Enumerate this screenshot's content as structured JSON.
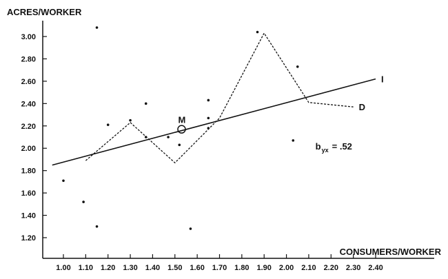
{
  "chart_data": {
    "type": "scatter",
    "ylabel": "ACRES/WORKER",
    "xlabel": "CONSUMERS/WORKER",
    "xlim": [
      0.93,
      2.45
    ],
    "ylim": [
      1.1,
      3.15
    ],
    "x_ticks": [
      "1.00",
      "1.10",
      "1.20",
      "1.30",
      "1.40",
      "1.50",
      "1.60",
      "1.70",
      "1.80",
      "1.90",
      "2.00",
      "2.10",
      "2.20",
      "2.30",
      "2.40"
    ],
    "y_ticks": [
      "1.20",
      "1.40",
      "1.60",
      "1.80",
      "2.00",
      "2.20",
      "2.40",
      "2.60",
      "2.80",
      "3.00"
    ],
    "grid": false,
    "legend": "none",
    "series": [
      {
        "kind": "points",
        "x": [
          1.0,
          1.09,
          1.15,
          1.15,
          1.2,
          1.3,
          1.37,
          1.37,
          1.47,
          1.52,
          1.57,
          1.65,
          1.65,
          1.65,
          1.87,
          2.03,
          2.05
        ],
        "y": [
          1.71,
          1.52,
          1.3,
          3.08,
          2.21,
          2.25,
          2.4,
          2.1,
          2.1,
          2.03,
          1.28,
          2.43,
          2.27,
          2.18,
          3.04,
          2.07,
          2.73
        ]
      },
      {
        "kind": "regression-line",
        "label": "I",
        "x": [
          0.95,
          2.4
        ],
        "y": [
          1.85,
          2.62
        ]
      },
      {
        "kind": "dashed-line",
        "label": "D",
        "x": [
          1.1,
          1.3,
          1.5,
          1.7,
          1.9,
          2.1,
          2.3
        ],
        "y": [
          1.89,
          2.23,
          1.87,
          2.27,
          3.03,
          2.41,
          2.37
        ]
      }
    ],
    "mean_point": {
      "label": "M",
      "x": 1.53,
      "y": 2.17
    },
    "annotations": {
      "coefficient_main": "b",
      "coefficient_sub": "yx",
      "coefficient_value": "= .52",
      "coefficient_at": {
        "x": 2.13,
        "y": 1.99
      }
    }
  },
  "colors": {
    "ink": "#111111",
    "background": "#ffffff"
  }
}
